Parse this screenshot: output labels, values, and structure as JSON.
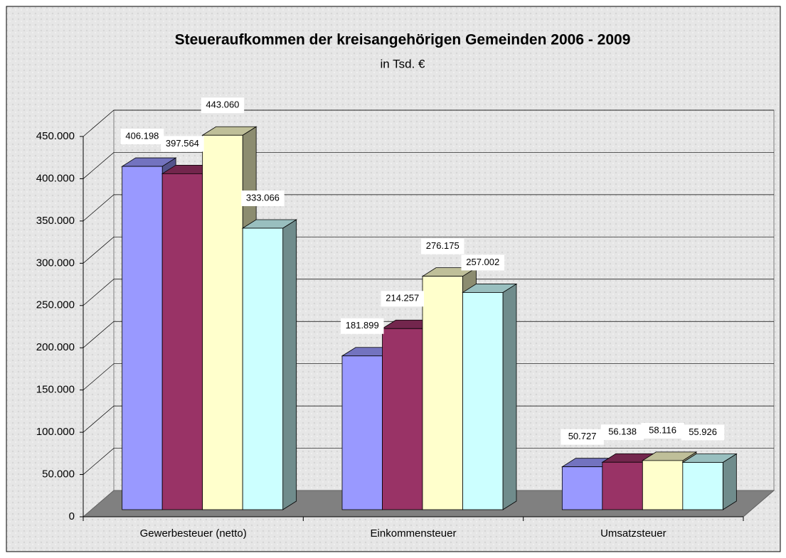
{
  "chart_data": {
    "type": "bar3d",
    "title": "Steueraufkommen der kreisangehörigen Gemeinden 2006 - 2009",
    "subtitle": "in Tsd. €",
    "categories": [
      "Gewerbesteuer (netto)",
      "Einkommensteuer",
      "Umsatzsteuer"
    ],
    "series": [
      {
        "color": "#9999ff",
        "values": [
          406198,
          181899,
          50727
        ],
        "value_labels": [
          "406.198",
          "181.899",
          "50.727"
        ]
      },
      {
        "color": "#993366",
        "values": [
          397564,
          214257,
          56138
        ],
        "value_labels": [
          "397.564",
          "214.257",
          "56.138"
        ]
      },
      {
        "color": "#ffffcc",
        "values": [
          443060,
          276175,
          58116
        ],
        "value_labels": [
          "443.060",
          "276.175",
          "58.116"
        ]
      },
      {
        "color": "#ccffff",
        "values": [
          333066,
          257002,
          55926
        ],
        "value_labels": [
          "333.066",
          "257.002",
          "55.926"
        ]
      }
    ],
    "ylim": [
      0,
      450000
    ],
    "yticks": [
      {
        "value": 0,
        "label": "0"
      },
      {
        "value": 50000,
        "label": "50.000"
      },
      {
        "value": 100000,
        "label": "100.000"
      },
      {
        "value": 150000,
        "label": "150.000"
      },
      {
        "value": 200000,
        "label": "200.000"
      },
      {
        "value": 250000,
        "label": "250.000"
      },
      {
        "value": 300000,
        "label": "300.000"
      },
      {
        "value": 350000,
        "label": "350.000"
      },
      {
        "value": 400000,
        "label": "400.000"
      },
      {
        "value": 450000,
        "label": "450.000"
      }
    ],
    "grid": true
  }
}
